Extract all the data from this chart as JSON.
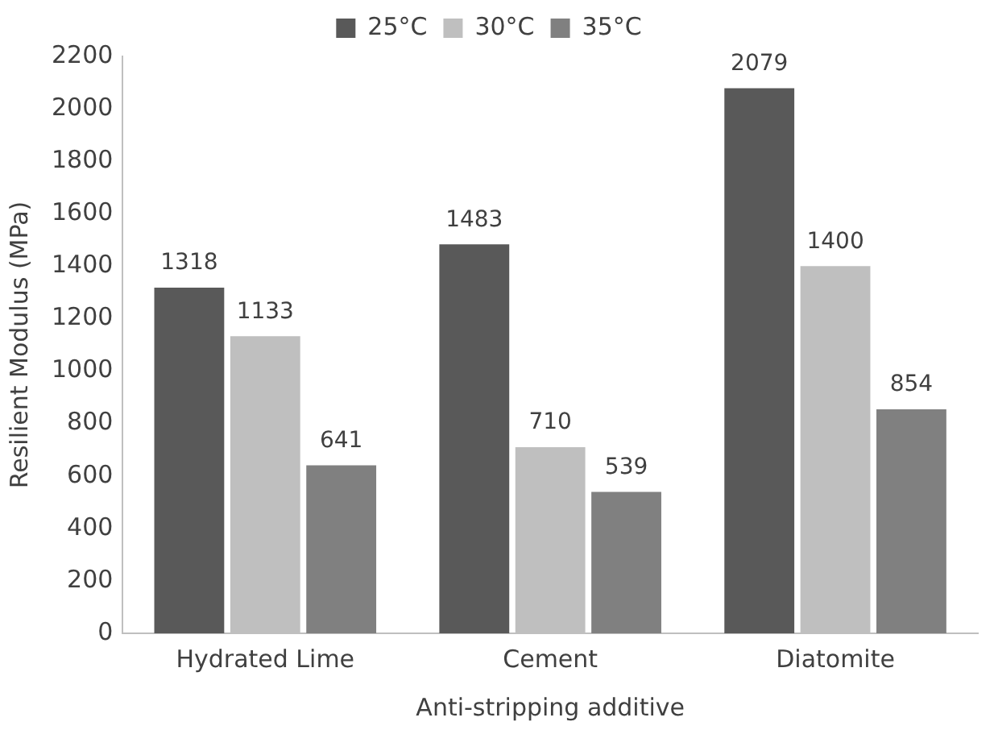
{
  "chart_data": {
    "type": "bar",
    "xlabel": "Anti-stripping additive",
    "ylabel": "Resilient Modulus (MPa)",
    "categories": [
      "Hydrated Lime",
      "Cement",
      "Diatomite"
    ],
    "series": [
      {
        "name": "25°C",
        "color": "#595959",
        "values": [
          1318,
          1483,
          2079
        ]
      },
      {
        "name": "30°C",
        "color": "#bfbfbf",
        "values": [
          1133,
          710,
          1400
        ]
      },
      {
        "name": "35°C",
        "color": "#808080",
        "values": [
          641,
          539,
          854
        ]
      }
    ],
    "ylim": [
      0,
      2200
    ],
    "yticks": [
      0,
      200,
      400,
      600,
      800,
      1000,
      1200,
      1400,
      1600,
      1800,
      2000,
      2200
    ],
    "grid": false,
    "legend": "top",
    "data_labels": true
  }
}
